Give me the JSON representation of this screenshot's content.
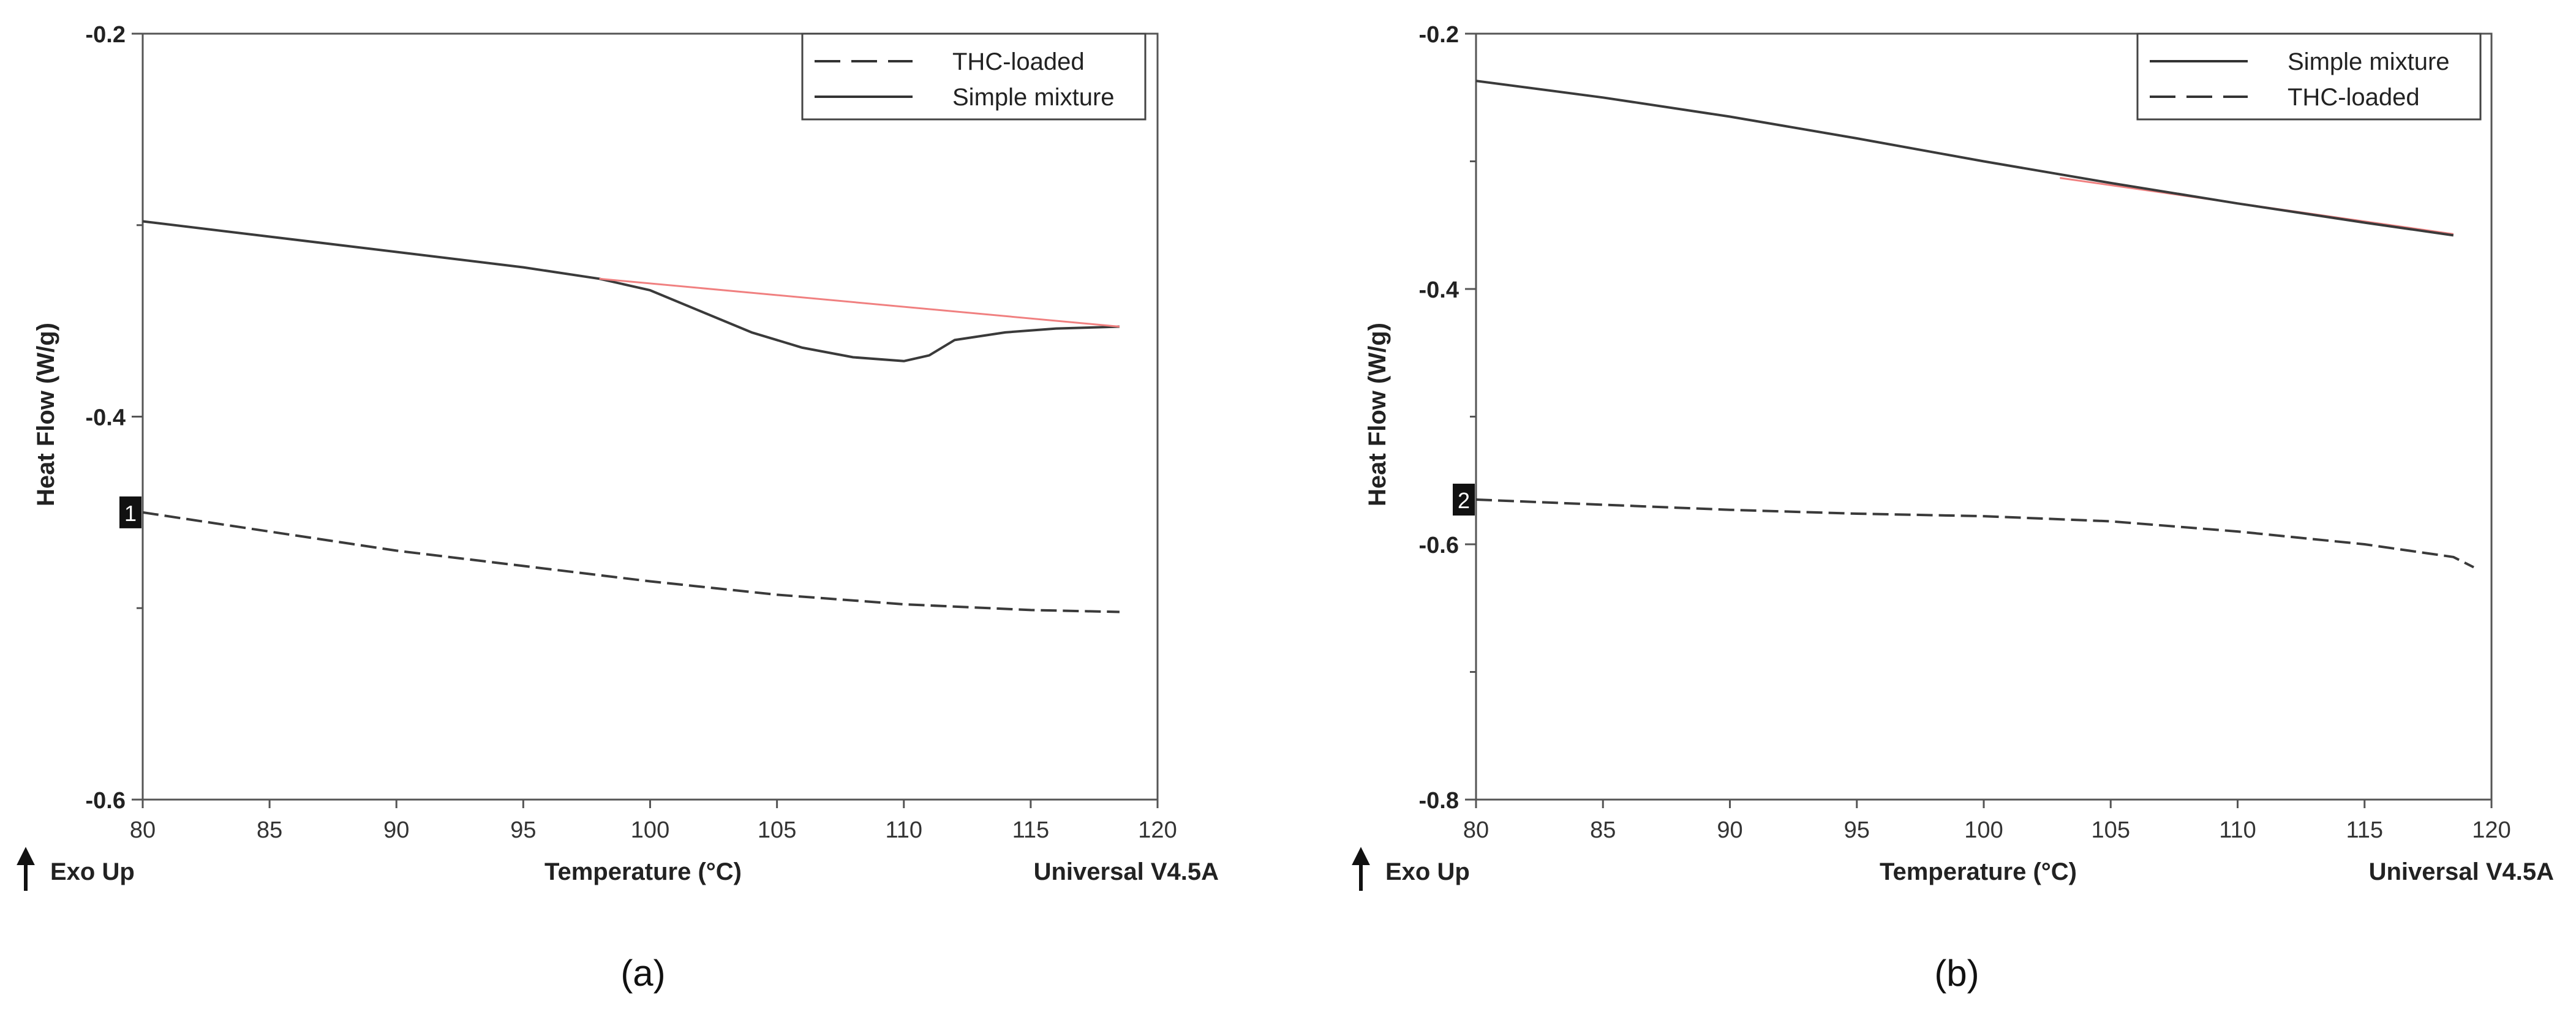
{
  "chart_data": [
    {
      "type": "line",
      "panel_label": "(a)",
      "xlabel": "Temperature (°C)",
      "ylabel": "Heat Flow (W/g)",
      "xlim": [
        80,
        120
      ],
      "ylim": [
        -0.6,
        -0.2
      ],
      "x_ticks": [
        80,
        85,
        90,
        95,
        100,
        105,
        110,
        115,
        120
      ],
      "y_ticks": [
        -0.6,
        -0.4,
        -0.2
      ],
      "y_tick_labels": [
        "-0.6",
        "-0.4",
        "-0.2"
      ],
      "legend_position": "top-right",
      "legend": [
        {
          "label": "THC-loaded",
          "style": "dashed"
        },
        {
          "label": "Simple mixture",
          "style": "solid"
        }
      ],
      "corner_left": "Exo Up",
      "corner_right": "Universal V4.5A",
      "marker_label": "1",
      "marker_value": -0.45,
      "series": [
        {
          "name": "Simple mixture",
          "style": "solid",
          "color": "#3a3a3a",
          "x": [
            80,
            85,
            90,
            95,
            98,
            100,
            102,
            104,
            106,
            108,
            110,
            111,
            112,
            114,
            116,
            118.5
          ],
          "y": [
            -0.298,
            -0.306,
            -0.314,
            -0.322,
            -0.328,
            -0.334,
            -0.345,
            -0.356,
            -0.364,
            -0.369,
            -0.371,
            -0.368,
            -0.36,
            -0.356,
            -0.354,
            -0.353
          ]
        },
        {
          "name": "Baseline",
          "style": "solid",
          "color": "#f08080",
          "x": [
            98,
            118.5
          ],
          "y": [
            -0.328,
            -0.353
          ]
        },
        {
          "name": "THC-loaded",
          "style": "dashed",
          "color": "#3a3a3a",
          "x": [
            80,
            85,
            90,
            95,
            100,
            105,
            110,
            115,
            118.5
          ],
          "y": [
            -0.45,
            -0.46,
            -0.47,
            -0.478,
            -0.486,
            -0.493,
            -0.498,
            -0.501,
            -0.502
          ]
        }
      ]
    },
    {
      "type": "line",
      "panel_label": "(b)",
      "xlabel": "Temperature (°C)",
      "ylabel": "Heat Flow (W/g)",
      "xlim": [
        80,
        120
      ],
      "ylim": [
        -0.8,
        -0.2
      ],
      "x_ticks": [
        80,
        85,
        90,
        95,
        100,
        105,
        110,
        115,
        120
      ],
      "y_ticks": [
        -0.8,
        -0.6,
        -0.4,
        -0.2
      ],
      "y_tick_labels": [
        "-0.8",
        "-0.6",
        "-0.4",
        "-0.2"
      ],
      "legend_position": "top-right",
      "legend": [
        {
          "label": "Simple mixture",
          "style": "solid"
        },
        {
          "label": "THC-loaded",
          "style": "dashed"
        }
      ],
      "corner_left": "Exo Up",
      "corner_right": "Universal V4.5A",
      "marker_label": "2",
      "marker_value": -0.565,
      "series": [
        {
          "name": "Baseline",
          "style": "solid",
          "color": "#f08080",
          "x": [
            103,
            118.5
          ],
          "y": [
            -0.313,
            -0.357
          ]
        },
        {
          "name": "Simple mixture",
          "style": "solid",
          "color": "#3a3a3a",
          "x": [
            80,
            85,
            90,
            95,
            100,
            105,
            110,
            115,
            118.5
          ],
          "y": [
            -0.237,
            -0.25,
            -0.265,
            -0.282,
            -0.3,
            -0.317,
            -0.333,
            -0.348,
            -0.358
          ]
        },
        {
          "name": "THC-loaded",
          "style": "dashed",
          "color": "#3a3a3a",
          "x": [
            80,
            85,
            90,
            95,
            100,
            105,
            110,
            115,
            118.5,
            119.3
          ],
          "y": [
            -0.565,
            -0.569,
            -0.573,
            -0.576,
            -0.578,
            -0.582,
            -0.59,
            -0.6,
            -0.61,
            -0.618
          ]
        }
      ]
    }
  ]
}
